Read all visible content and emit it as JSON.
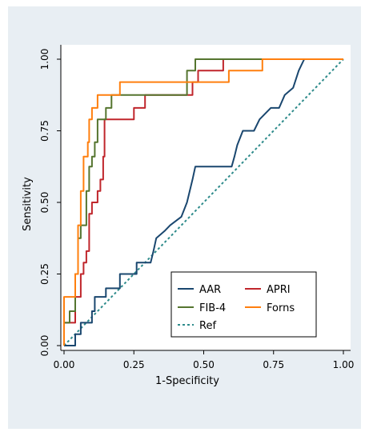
{
  "chart_data": {
    "type": "line",
    "xlabel": "1-Specificity",
    "ylabel": "Sensitivity",
    "xlim": [
      0,
      1
    ],
    "ylim": [
      0,
      1
    ],
    "x_ticks": [
      "0.00",
      "0.25",
      "0.50",
      "0.75",
      "1.00"
    ],
    "y_ticks": [
      "0.00",
      "0.25",
      "0.50",
      "0.75",
      "1.00"
    ],
    "grid": false,
    "legend_position": "bottom-right",
    "background_color": "#e8eef3",
    "series": [
      {
        "name": "AAR",
        "color": "#1a476f",
        "dash": false,
        "points": [
          [
            0,
            0
          ],
          [
            0.04,
            0
          ],
          [
            0.04,
            0.04
          ],
          [
            0.06,
            0.04
          ],
          [
            0.06,
            0.08
          ],
          [
            0.1,
            0.08
          ],
          [
            0.1,
            0.12
          ],
          [
            0.11,
            0.12
          ],
          [
            0.11,
            0.17
          ],
          [
            0.15,
            0.17
          ],
          [
            0.15,
            0.2
          ],
          [
            0.2,
            0.2
          ],
          [
            0.2,
            0.25
          ],
          [
            0.26,
            0.25
          ],
          [
            0.26,
            0.29
          ],
          [
            0.31,
            0.29
          ],
          [
            0.32,
            0.33
          ],
          [
            0.33,
            0.375
          ],
          [
            0.36,
            0.4
          ],
          [
            0.38,
            0.42
          ],
          [
            0.42,
            0.45
          ],
          [
            0.44,
            0.5
          ],
          [
            0.46,
            0.58
          ],
          [
            0.47,
            0.625
          ],
          [
            0.6,
            0.625
          ],
          [
            0.61,
            0.66
          ],
          [
            0.62,
            0.7
          ],
          [
            0.64,
            0.75
          ],
          [
            0.68,
            0.75
          ],
          [
            0.7,
            0.79
          ],
          [
            0.74,
            0.83
          ],
          [
            0.77,
            0.83
          ],
          [
            0.79,
            0.875
          ],
          [
            0.82,
            0.9
          ],
          [
            0.84,
            0.96
          ],
          [
            0.85,
            0.98
          ],
          [
            0.86,
            1.0
          ],
          [
            1.0,
            1.0
          ]
        ]
      },
      {
        "name": "APRI",
        "color": "#c0262c",
        "dash": false,
        "points": [
          [
            0,
            0
          ],
          [
            0,
            0.08
          ],
          [
            0.04,
            0.08
          ],
          [
            0.04,
            0.17
          ],
          [
            0.06,
            0.17
          ],
          [
            0.06,
            0.25
          ],
          [
            0.07,
            0.25
          ],
          [
            0.07,
            0.29
          ],
          [
            0.08,
            0.29
          ],
          [
            0.08,
            0.33
          ],
          [
            0.09,
            0.33
          ],
          [
            0.09,
            0.46
          ],
          [
            0.1,
            0.46
          ],
          [
            0.1,
            0.5
          ],
          [
            0.12,
            0.5
          ],
          [
            0.12,
            0.54
          ],
          [
            0.13,
            0.54
          ],
          [
            0.13,
            0.58
          ],
          [
            0.14,
            0.58
          ],
          [
            0.14,
            0.66
          ],
          [
            0.145,
            0.66
          ],
          [
            0.145,
            0.79
          ],
          [
            0.25,
            0.79
          ],
          [
            0.25,
            0.83
          ],
          [
            0.29,
            0.83
          ],
          [
            0.29,
            0.875
          ],
          [
            0.46,
            0.875
          ],
          [
            0.46,
            0.92
          ],
          [
            0.48,
            0.92
          ],
          [
            0.48,
            0.96
          ],
          [
            0.57,
            0.96
          ],
          [
            0.57,
            1.0
          ],
          [
            1.0,
            1.0
          ]
        ]
      },
      {
        "name": "FIB-4",
        "color": "#55752f",
        "dash": false,
        "points": [
          [
            0,
            0
          ],
          [
            0,
            0.08
          ],
          [
            0.02,
            0.08
          ],
          [
            0.02,
            0.12
          ],
          [
            0.04,
            0.12
          ],
          [
            0.04,
            0.25
          ],
          [
            0.05,
            0.25
          ],
          [
            0.05,
            0.375
          ],
          [
            0.06,
            0.375
          ],
          [
            0.06,
            0.42
          ],
          [
            0.08,
            0.42
          ],
          [
            0.08,
            0.54
          ],
          [
            0.09,
            0.54
          ],
          [
            0.09,
            0.625
          ],
          [
            0.1,
            0.625
          ],
          [
            0.1,
            0.66
          ],
          [
            0.11,
            0.66
          ],
          [
            0.11,
            0.71
          ],
          [
            0.12,
            0.71
          ],
          [
            0.12,
            0.79
          ],
          [
            0.15,
            0.79
          ],
          [
            0.15,
            0.83
          ],
          [
            0.17,
            0.83
          ],
          [
            0.17,
            0.875
          ],
          [
            0.44,
            0.875
          ],
          [
            0.44,
            0.96
          ],
          [
            0.47,
            0.96
          ],
          [
            0.47,
            1.0
          ],
          [
            1.0,
            1.0
          ]
        ]
      },
      {
        "name": "Forns",
        "color": "#ff7f0e",
        "dash": false,
        "points": [
          [
            0,
            0
          ],
          [
            0,
            0.17
          ],
          [
            0.04,
            0.17
          ],
          [
            0.04,
            0.25
          ],
          [
            0.05,
            0.25
          ],
          [
            0.05,
            0.42
          ],
          [
            0.06,
            0.42
          ],
          [
            0.06,
            0.54
          ],
          [
            0.07,
            0.54
          ],
          [
            0.07,
            0.66
          ],
          [
            0.085,
            0.66
          ],
          [
            0.085,
            0.71
          ],
          [
            0.09,
            0.71
          ],
          [
            0.09,
            0.79
          ],
          [
            0.1,
            0.79
          ],
          [
            0.1,
            0.83
          ],
          [
            0.12,
            0.83
          ],
          [
            0.12,
            0.875
          ],
          [
            0.2,
            0.875
          ],
          [
            0.2,
            0.92
          ],
          [
            0.59,
            0.92
          ],
          [
            0.59,
            0.96
          ],
          [
            0.71,
            0.96
          ],
          [
            0.71,
            1.0
          ],
          [
            1.0,
            1.0
          ]
        ]
      },
      {
        "name": "Ref",
        "color": "#2e8b8b",
        "dash": true,
        "points": [
          [
            0,
            0
          ],
          [
            1,
            1
          ]
        ]
      }
    ]
  }
}
